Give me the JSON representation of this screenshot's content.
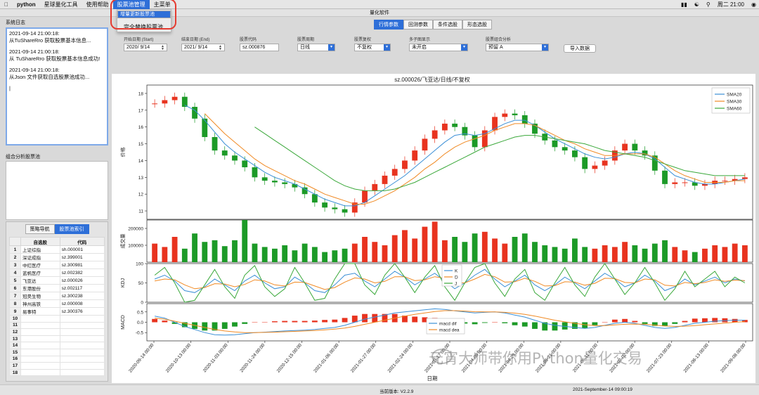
{
  "menubar": {
    "app": "python",
    "items": [
      "星球量化工具",
      "使用帮助",
      "股票池管理",
      "主菜单"
    ],
    "clock": "周二 21:00"
  },
  "dropdown": {
    "items": [
      "增量更新股票池",
      "完全替换股票池"
    ]
  },
  "window": {
    "title": "量化软件"
  },
  "log": {
    "title": "系统日志",
    "entries": [
      {
        "time": "2021-09-14 21:00:18:",
        "msg": "从TuShareRro 获取股票基本信息..."
      },
      {
        "time": "2021-09-14 21:00:18:",
        "msg": "从 TuShareRro 获取股票基本信息成功!"
      },
      {
        "time": "2021-09-14 21:00:18:",
        "msg": "从Json 文件获取自选股票池成功..."
      }
    ]
  },
  "pool": {
    "title": "组合分析股票池"
  },
  "index_panel": {
    "tabs": [
      "策略导航",
      "股票池索引"
    ],
    "headers": [
      "自选股",
      "代码"
    ],
    "rows": [
      [
        "上证综指",
        "sh.000001"
      ],
      [
        "深证成指",
        "sz.399001"
      ],
      [
        "中红医疗",
        "sz.300981"
      ],
      [
        "蓝帆医疗",
        "sz.002382"
      ],
      [
        "飞亚达",
        "sz.000026"
      ],
      [
        "东港股份",
        "sz.002117"
      ],
      [
        "冠昊生物",
        "sz.300238"
      ],
      [
        "神州高铁",
        "sz.000008"
      ],
      [
        "易事特",
        "sz.300376"
      ],
      [
        "",
        ""
      ],
      [
        "",
        ""
      ],
      [
        "",
        ""
      ],
      [
        "",
        ""
      ],
      [
        "",
        ""
      ],
      [
        "",
        ""
      ],
      [
        "",
        ""
      ],
      [
        "",
        ""
      ],
      [
        "",
        ""
      ]
    ]
  },
  "top_tabs": [
    "行情参数",
    "回测参数",
    "条件选股",
    "形态选股"
  ],
  "params": {
    "start_label": "开始日期 (Start)",
    "start_value": "2020/ 9/14",
    "end_label": "结束日期 (End)",
    "end_value": "2021/ 9/14",
    "code_label": "股票代码",
    "code_value": "sz.000876",
    "period_label": "股票周期",
    "period_value": "日线",
    "adjust_label": "股票复权",
    "adjust_value": "不复权",
    "multi_label": "多子图显示",
    "multi_value": "未开启",
    "combo_label": "股票组合分析",
    "combo_value": "预留 A",
    "import_button": "导入数据"
  },
  "chart_data": {
    "type": "line",
    "title": "sz.000026/飞亚达/日线/不复权",
    "xlabel": "日期",
    "x_ticks": [
      "2020-09-14 00:00",
      "2020-10-13 00:00",
      "2020-11-03 00:00",
      "2020-11-24 00:00",
      "2020-12-15 00:00",
      "2021-01-06 00:00",
      "2021-01-27 00:00",
      "2021-02-24 00:00",
      "2021-03-17 00:00",
      "2021-04-08 00:00",
      "2021-04-29 00:00",
      "2021-05-21 00:00",
      "2021-06-11 00:00",
      "2021-07-02 00:00",
      "2021-07-23 00:00",
      "2021-08-13 00:00",
      "2021-09-08 00:00"
    ],
    "price_panel": {
      "ylabel": "价格",
      "ylim": [
        10.5,
        18.5
      ],
      "yticks": [
        11,
        12,
        13,
        14,
        15,
        16,
        17,
        18
      ],
      "legend": [
        "SMA20",
        "SMA30",
        "SMA60"
      ],
      "legend_position": "top-right",
      "close": [
        17.4,
        17.6,
        17.8,
        17.2,
        16.5,
        15.4,
        14.6,
        14.3,
        14.0,
        13.6,
        13.0,
        12.8,
        12.7,
        12.6,
        12.4,
        12.0,
        11.5,
        11.2,
        11.1,
        10.9,
        11.5,
        12.2,
        12.6,
        13.1,
        13.5,
        14.0,
        14.6,
        15.3,
        15.8,
        16.2,
        16.0,
        15.5,
        14.8,
        15.8,
        16.6,
        16.8,
        16.7,
        16.2,
        15.6,
        15.2,
        14.8,
        14.6,
        14.2,
        13.5,
        13.7,
        14.0,
        14.6,
        15.0,
        14.6,
        14.3,
        13.4,
        12.6,
        12.7,
        12.7,
        12.5,
        12.6,
        12.8,
        12.8,
        12.9,
        13.0
      ],
      "sma20": [
        null,
        null,
        null,
        17.3,
        17.0,
        16.4,
        15.7,
        15.0,
        14.5,
        14.1,
        13.7,
        13.3,
        13.0,
        12.8,
        12.6,
        12.3,
        12.0,
        11.7,
        11.5,
        11.3,
        11.3,
        11.5,
        11.9,
        12.3,
        12.7,
        13.1,
        13.6,
        14.1,
        14.6,
        15.1,
        15.5,
        15.6,
        15.5,
        15.6,
        15.9,
        16.2,
        16.4,
        16.4,
        16.1,
        15.7,
        15.3,
        15.0,
        14.7,
        14.4,
        14.2,
        14.1,
        14.2,
        14.4,
        14.5,
        14.4,
        14.1,
        13.6,
        13.1,
        12.9,
        12.7,
        12.6,
        12.6,
        12.7,
        12.8,
        12.9
      ],
      "sma30": [
        null,
        null,
        null,
        null,
        null,
        16.8,
        16.2,
        15.6,
        15.1,
        14.6,
        14.1,
        13.7,
        13.4,
        13.1,
        12.8,
        12.6,
        12.3,
        12.0,
        11.8,
        11.6,
        11.4,
        11.4,
        11.6,
        11.9,
        12.2,
        12.6,
        13.0,
        13.5,
        13.9,
        14.4,
        14.8,
        15.1,
        15.3,
        15.5,
        15.8,
        16.0,
        16.2,
        16.2,
        16.1,
        15.8,
        15.5,
        15.2,
        15.0,
        14.7,
        14.5,
        14.3,
        14.3,
        14.4,
        14.4,
        14.4,
        14.2,
        13.8,
        13.4,
        13.1,
        12.9,
        12.7,
        12.7,
        12.7,
        12.8,
        12.8
      ],
      "sma60": [
        null,
        null,
        null,
        null,
        null,
        null,
        null,
        null,
        null,
        null,
        16.0,
        15.6,
        15.2,
        14.8,
        14.4,
        14.0,
        13.6,
        13.2,
        12.8,
        12.5,
        12.3,
        12.2,
        12.2,
        12.2,
        12.3,
        12.5,
        12.7,
        13.0,
        13.3,
        13.6,
        13.9,
        14.2,
        14.5,
        14.8,
        15.0,
        15.2,
        15.4,
        15.5,
        15.5,
        15.4,
        15.3,
        15.2,
        15.1,
        15.0,
        14.8,
        14.6,
        14.5,
        14.4,
        14.3,
        14.2,
        14.0,
        13.8,
        13.6,
        13.4,
        13.3,
        13.2,
        13.1,
        13.1,
        13.1,
        13.1
      ]
    },
    "volume_panel": {
      "ylabel": "成交量",
      "ylim": [
        0,
        250000
      ],
      "yticks": [
        100000,
        200000
      ],
      "values": [
        110000,
        90000,
        150000,
        80000,
        170000,
        120000,
        130000,
        95000,
        130000,
        250000,
        110000,
        90000,
        80000,
        100000,
        70000,
        110000,
        90000,
        60000,
        70000,
        80000,
        110000,
        150000,
        120000,
        100000,
        160000,
        190000,
        140000,
        210000,
        240000,
        130000,
        150000,
        120000,
        170000,
        180000,
        140000,
        110000,
        150000,
        170000,
        120000,
        100000,
        90000,
        80000,
        140000,
        90000,
        80000,
        100000,
        90000,
        120000,
        100000,
        80000,
        110000,
        130000,
        90000,
        70000,
        60000,
        80000,
        100000,
        90000,
        110000,
        100000
      ]
    },
    "kdj_panel": {
      "ylabel": "KDJ",
      "ylim": [
        0,
        100
      ],
      "yticks": [
        0,
        50,
        100
      ],
      "legend": [
        "K",
        "D",
        "J"
      ],
      "k": [
        60,
        70,
        55,
        30,
        25,
        40,
        60,
        45,
        30,
        55,
        70,
        50,
        35,
        40,
        65,
        50,
        30,
        25,
        45,
        70,
        75,
        55,
        40,
        60,
        80,
        65,
        45,
        60,
        75,
        55,
        35,
        50,
        70,
        85,
        60,
        40,
        55,
        70,
        45,
        30,
        45,
        65,
        50,
        35,
        55,
        75,
        60,
        40,
        50,
        70,
        55,
        30,
        40,
        60,
        45,
        55,
        65,
        50,
        60,
        55
      ],
      "d": [
        55,
        60,
        58,
        45,
        35,
        38,
        48,
        47,
        40,
        46,
        58,
        55,
        45,
        42,
        52,
        51,
        42,
        33,
        38,
        52,
        63,
        60,
        50,
        54,
        66,
        66,
        56,
        58,
        66,
        62,
        50,
        50,
        60,
        72,
        66,
        52,
        53,
        62,
        54,
        42,
        43,
        53,
        52,
        44,
        49,
        62,
        61,
        51,
        50,
        60,
        58,
        44,
        42,
        51,
        48,
        51,
        58,
        54,
        57,
        56
      ],
      "j": [
        70,
        90,
        50,
        0,
        5,
        45,
        85,
        40,
        10,
        70,
        95,
        40,
        15,
        35,
        90,
        50,
        5,
        10,
        60,
        100,
        100,
        45,
        20,
        70,
        100,
        65,
        25,
        65,
        95,
        40,
        5,
        50,
        90,
        100,
        50,
        15,
        60,
        85,
        25,
        5,
        50,
        90,
        45,
        15,
        65,
        100,
        60,
        20,
        50,
        90,
        50,
        5,
        35,
        80,
        40,
        60,
        80,
        40,
        65,
        50
      ]
    },
    "macd_panel": {
      "ylabel": "MACD",
      "ylim": [
        -0.9,
        0.9
      ],
      "yticks": [
        -0.5,
        0.0,
        0.5
      ],
      "legend": [
        "macd dif",
        "macd dea"
      ],
      "dif": [
        0.3,
        0.2,
        0.0,
        -0.2,
        -0.35,
        -0.5,
        -0.6,
        -0.62,
        -0.6,
        -0.55,
        -0.5,
        -0.48,
        -0.45,
        -0.42,
        -0.4,
        -0.38,
        -0.35,
        -0.3,
        -0.25,
        -0.15,
        0.0,
        0.15,
        0.25,
        0.35,
        0.45,
        0.5,
        0.55,
        0.6,
        0.65,
        0.62,
        0.55,
        0.5,
        0.45,
        0.48,
        0.5,
        0.45,
        0.35,
        0.25,
        0.1,
        -0.05,
        -0.15,
        -0.2,
        -0.25,
        -0.3,
        -0.25,
        -0.15,
        -0.05,
        0.0,
        -0.05,
        -0.15,
        -0.25,
        -0.3,
        -0.25,
        -0.15,
        -0.05,
        0.0,
        0.05,
        0.08,
        0.1,
        0.1
      ],
      "dea": [
        0.2,
        0.15,
        0.05,
        -0.05,
        -0.15,
        -0.25,
        -0.35,
        -0.42,
        -0.47,
        -0.5,
        -0.5,
        -0.49,
        -0.48,
        -0.46,
        -0.44,
        -0.42,
        -0.4,
        -0.37,
        -0.33,
        -0.28,
        -0.2,
        -0.1,
        0.0,
        0.1,
        0.2,
        0.3,
        0.38,
        0.45,
        0.52,
        0.56,
        0.56,
        0.54,
        0.51,
        0.5,
        0.5,
        0.48,
        0.44,
        0.38,
        0.3,
        0.2,
        0.1,
        0.02,
        -0.05,
        -0.12,
        -0.16,
        -0.16,
        -0.13,
        -0.1,
        -0.09,
        -0.1,
        -0.14,
        -0.18,
        -0.2,
        -0.19,
        -0.16,
        -0.12,
        -0.08,
        -0.04,
        0.0,
        0.03
      ]
    }
  },
  "status": {
    "version": "当前版本: V2.2.9",
    "time": "2021-September-14 09:00:19"
  },
  "watermark": "元宵大师带你用Python量化交易",
  "colors": {
    "accent": "#2e6fd8",
    "up": "#e8331f",
    "down": "#1c9a27",
    "sma20": "#3b8fd6",
    "sma30": "#f08a24",
    "sma60": "#3aa83a",
    "highlight": "#e53b30"
  }
}
